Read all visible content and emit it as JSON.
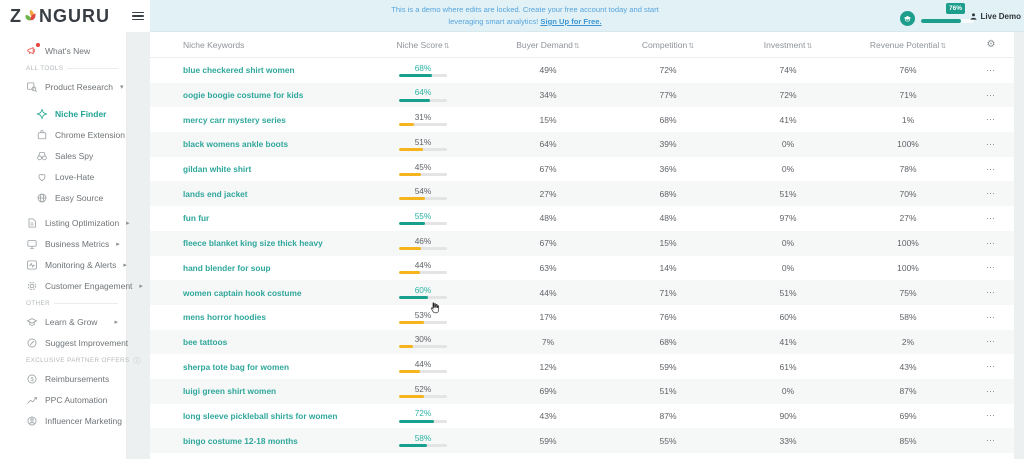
{
  "topbar": {
    "logo_pre": "Z",
    "logo_post": "NGURU",
    "notice_line1": "This is a demo where edits are locked. Create your free account today and start",
    "notice_line2_prefix": "leveraging smart analytics! ",
    "notice_link": "Sign Up for Free.",
    "progress_pct": 76,
    "progress_label": "76%",
    "user_label": "Live Demo"
  },
  "sidebar": {
    "whats_new": "What's New",
    "section_all_tools": "ALL TOOLS",
    "product_research": "Product Research",
    "niche_finder": "Niche Finder",
    "chrome_extension": "Chrome Extension",
    "sales_spy": "Sales Spy",
    "love_hate": "Love-Hate",
    "easy_source": "Easy Source",
    "listing_optimization": "Listing Optimization",
    "business_metrics": "Business Metrics",
    "monitoring_alerts": "Monitoring & Alerts",
    "customer_engagement": "Customer Engagement",
    "section_other": "OTHER",
    "learn_grow": "Learn & Grow",
    "suggest_improvement": "Suggest Improvement",
    "section_partners": "EXCLUSIVE PARTNER OFFERS",
    "reimbursements": "Reimbursements",
    "ppc_automation": "PPC Automation",
    "influencer_marketing": "Influencer Marketing"
  },
  "icons": {
    "sort": "⇅",
    "caret_down": "▾",
    "caret_right": "▸",
    "info": "ⓘ",
    "gear": "⚙",
    "row_menu": "⋯"
  },
  "colors": {
    "accent_teal": "#1d9e8c",
    "score_teal": "#16a08d",
    "score_yellow": "#f6b51e",
    "link_blue": "#3e97d4"
  },
  "table": {
    "columns": [
      "Niche Keywords",
      "Niche Score",
      "Buyer Demand",
      "Competition",
      "Investment",
      "Revenue Potential"
    ],
    "rows": [
      {
        "keyword": "blue checkered shirt women",
        "niche_score": "68%",
        "score_pct": 68,
        "tone": "teal",
        "buyer_demand": "49%",
        "competition": "72%",
        "investment": "74%",
        "revenue_potential": "76%"
      },
      {
        "keyword": "oogie boogie costume for kids",
        "niche_score": "64%",
        "score_pct": 64,
        "tone": "teal",
        "buyer_demand": "34%",
        "competition": "77%",
        "investment": "72%",
        "revenue_potential": "71%"
      },
      {
        "keyword": "mercy carr mystery series",
        "niche_score": "31%",
        "score_pct": 31,
        "tone": "yellow",
        "buyer_demand": "15%",
        "competition": "68%",
        "investment": "41%",
        "revenue_potential": "1%"
      },
      {
        "keyword": "black womens ankle boots",
        "niche_score": "51%",
        "score_pct": 51,
        "tone": "yellow",
        "buyer_demand": "64%",
        "competition": "39%",
        "investment": "0%",
        "revenue_potential": "100%"
      },
      {
        "keyword": "gildan white shirt",
        "niche_score": "45%",
        "score_pct": 45,
        "tone": "yellow",
        "buyer_demand": "67%",
        "competition": "36%",
        "investment": "0%",
        "revenue_potential": "78%"
      },
      {
        "keyword": "lands end jacket",
        "niche_score": "54%",
        "score_pct": 54,
        "tone": "yellow",
        "buyer_demand": "27%",
        "competition": "68%",
        "investment": "51%",
        "revenue_potential": "70%"
      },
      {
        "keyword": "fun fur",
        "niche_score": "55%",
        "score_pct": 55,
        "tone": "teal",
        "buyer_demand": "48%",
        "competition": "48%",
        "investment": "97%",
        "revenue_potential": "27%"
      },
      {
        "keyword": "fleece blanket king size thick heavy",
        "niche_score": "46%",
        "score_pct": 46,
        "tone": "yellow",
        "buyer_demand": "67%",
        "competition": "15%",
        "investment": "0%",
        "revenue_potential": "100%"
      },
      {
        "keyword": "hand blender for soup",
        "niche_score": "44%",
        "score_pct": 44,
        "tone": "yellow",
        "buyer_demand": "63%",
        "competition": "14%",
        "investment": "0%",
        "revenue_potential": "100%"
      },
      {
        "keyword": "women captain hook costume",
        "niche_score": "60%",
        "score_pct": 60,
        "tone": "teal",
        "buyer_demand": "44%",
        "competition": "71%",
        "investment": "51%",
        "revenue_potential": "75%"
      },
      {
        "keyword": "mens horror hoodies",
        "niche_score": "53%",
        "score_pct": 53,
        "tone": "yellow",
        "buyer_demand": "17%",
        "competition": "76%",
        "investment": "60%",
        "revenue_potential": "58%"
      },
      {
        "keyword": "bee tattoos",
        "niche_score": "30%",
        "score_pct": 30,
        "tone": "yellow",
        "buyer_demand": "7%",
        "competition": "68%",
        "investment": "41%",
        "revenue_potential": "2%"
      },
      {
        "keyword": "sherpa tote bag for women",
        "niche_score": "44%",
        "score_pct": 44,
        "tone": "yellow",
        "buyer_demand": "12%",
        "competition": "59%",
        "investment": "61%",
        "revenue_potential": "43%"
      },
      {
        "keyword": "luigi green shirt women",
        "niche_score": "52%",
        "score_pct": 52,
        "tone": "yellow",
        "buyer_demand": "69%",
        "competition": "51%",
        "investment": "0%",
        "revenue_potential": "87%"
      },
      {
        "keyword": "long sleeve pickleball shirts for women",
        "niche_score": "72%",
        "score_pct": 72,
        "tone": "teal",
        "buyer_demand": "43%",
        "competition": "87%",
        "investment": "90%",
        "revenue_potential": "69%"
      },
      {
        "keyword": "bingo costume 12-18 months",
        "niche_score": "58%",
        "score_pct": 58,
        "tone": "teal",
        "buyer_demand": "59%",
        "competition": "55%",
        "investment": "33%",
        "revenue_potential": "85%"
      }
    ]
  }
}
